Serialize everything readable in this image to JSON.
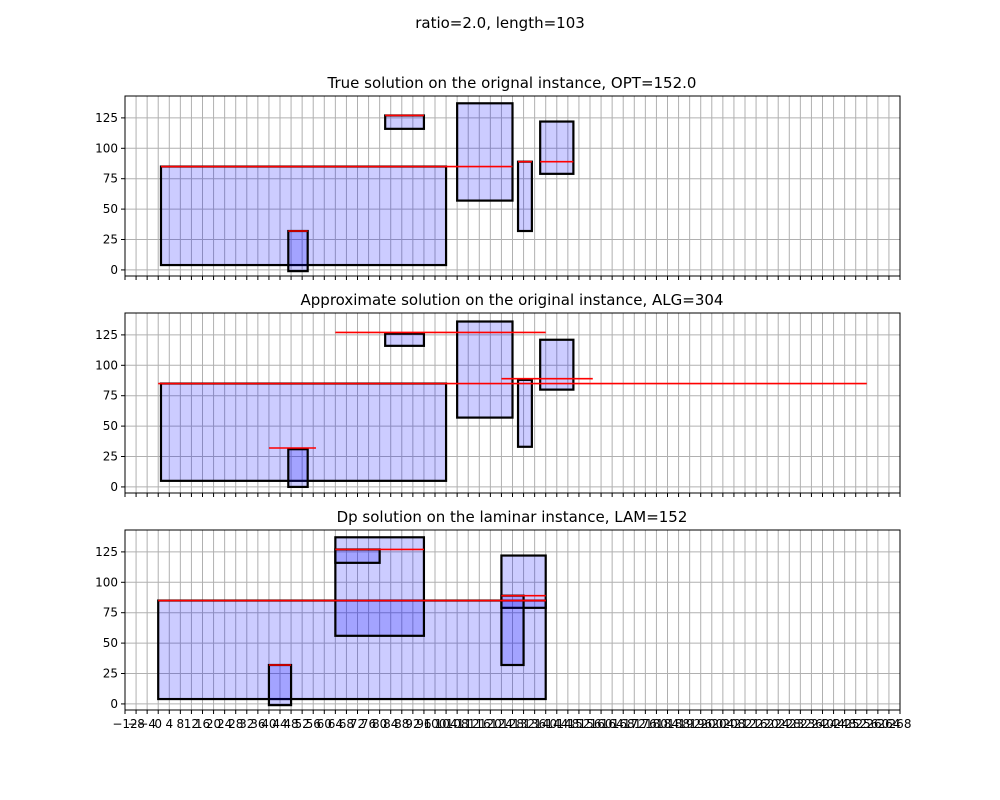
{
  "figure": {
    "suptitle": "ratio=2.0, length=103"
  },
  "colors": {
    "fill": "#ccccff",
    "overlap_fill": "#a6a6ff",
    "edge": "#000000",
    "line": "#ff0000",
    "grid": "#b0b0b0"
  },
  "chart_data": [
    {
      "type": "rectangles",
      "title": "True solution on the orignal instance, OPT=152.0",
      "xlim": [
        -12,
        268
      ],
      "ylim": [
        -5,
        143
      ],
      "xticks": [
        -12,
        -8,
        -4,
        0,
        4,
        8,
        12,
        16,
        20,
        24,
        28,
        32,
        36,
        40,
        44,
        48,
        52,
        56,
        60,
        64,
        68,
        72,
        76,
        80,
        84,
        88,
        92,
        96,
        100,
        104,
        108,
        112,
        116,
        120,
        124,
        128,
        132,
        136,
        140,
        144,
        148,
        152,
        156,
        160,
        164,
        168,
        172,
        176,
        180,
        184,
        188,
        192,
        196,
        200,
        204,
        208,
        212,
        216,
        220,
        224,
        228,
        232,
        236,
        240,
        244,
        248,
        252,
        256,
        260,
        264,
        268
      ],
      "yticks": [
        0,
        25,
        50,
        75,
        100,
        125
      ],
      "grid": true,
      "rects": [
        {
          "x0": 1,
          "x1": 104,
          "y0": 4,
          "y1": 85
        },
        {
          "x0": 47,
          "x1": 54,
          "y0": -1,
          "y1": 32
        },
        {
          "x0": 82,
          "x1": 96,
          "y0": 116,
          "y1": 127
        },
        {
          "x0": 108,
          "x1": 128,
          "y0": 57,
          "y1": 137
        },
        {
          "x0": 130,
          "x1": 135,
          "y0": 32,
          "y1": 89
        },
        {
          "x0": 138,
          "x1": 150,
          "y0": 79,
          "y1": 122
        }
      ],
      "lines": [
        {
          "x0": 1,
          "x1": 128,
          "y": 85
        },
        {
          "x0": 47,
          "x1": 54,
          "y": 32
        },
        {
          "x0": 82,
          "x1": 96,
          "y": 127
        },
        {
          "x0": 130,
          "x1": 135,
          "y": 89
        },
        {
          "x0": 138,
          "x1": 150,
          "y": 89
        }
      ]
    },
    {
      "type": "rectangles",
      "title": "Approximate solution on the original instance, ALG=304",
      "xlim": [
        -12,
        268
      ],
      "ylim": [
        -5,
        143
      ],
      "xticks": [
        -12,
        -8,
        -4,
        0,
        4,
        8,
        12,
        16,
        20,
        24,
        28,
        32,
        36,
        40,
        44,
        48,
        52,
        56,
        60,
        64,
        68,
        72,
        76,
        80,
        84,
        88,
        92,
        96,
        100,
        104,
        108,
        112,
        116,
        120,
        124,
        128,
        132,
        136,
        140,
        144,
        148,
        152,
        156,
        160,
        164,
        168,
        172,
        176,
        180,
        184,
        188,
        192,
        196,
        200,
        204,
        208,
        212,
        216,
        220,
        224,
        228,
        232,
        236,
        240,
        244,
        248,
        252,
        256,
        260,
        264,
        268
      ],
      "yticks": [
        0,
        25,
        50,
        75,
        100,
        125
      ],
      "grid": true,
      "rects": [
        {
          "x0": 1,
          "x1": 104,
          "y0": 5,
          "y1": 85
        },
        {
          "x0": 47,
          "x1": 54,
          "y0": 0,
          "y1": 31
        },
        {
          "x0": 82,
          "x1": 96,
          "y0": 116,
          "y1": 126
        },
        {
          "x0": 108,
          "x1": 128,
          "y0": 57,
          "y1": 136
        },
        {
          "x0": 130,
          "x1": 135,
          "y0": 33,
          "y1": 88
        },
        {
          "x0": 138,
          "x1": 150,
          "y0": 80,
          "y1": 121
        }
      ],
      "lines": [
        {
          "x0": 0,
          "x1": 256,
          "y": 85
        },
        {
          "x0": 40,
          "x1": 57,
          "y": 32
        },
        {
          "x0": 64,
          "x1": 140,
          "y": 127
        },
        {
          "x0": 124,
          "x1": 157,
          "y": 89
        }
      ]
    },
    {
      "type": "rectangles",
      "title": "Dp solution on the laminar instance, LAM=152",
      "xlim": [
        -12,
        268
      ],
      "ylim": [
        -5,
        143
      ],
      "xticks": [
        -12,
        -8,
        -4,
        0,
        4,
        8,
        12,
        16,
        20,
        24,
        28,
        32,
        36,
        40,
        44,
        48,
        52,
        56,
        60,
        64,
        68,
        72,
        76,
        80,
        84,
        88,
        92,
        96,
        100,
        104,
        108,
        112,
        116,
        120,
        124,
        128,
        132,
        136,
        140,
        144,
        148,
        152,
        156,
        160,
        164,
        168,
        172,
        176,
        180,
        184,
        188,
        192,
        196,
        200,
        204,
        208,
        212,
        216,
        220,
        224,
        228,
        232,
        236,
        240,
        244,
        248,
        252,
        256,
        260,
        264,
        268
      ],
      "yticks": [
        0,
        25,
        50,
        75,
        100,
        125
      ],
      "grid": true,
      "rects": [
        {
          "x0": 0,
          "x1": 140,
          "y0": 4,
          "y1": 85
        },
        {
          "x0": 40,
          "x1": 48,
          "y0": -1,
          "y1": 32
        },
        {
          "x0": 64,
          "x1": 96,
          "y0": 56,
          "y1": 137
        },
        {
          "x0": 64,
          "x1": 80,
          "y0": 116,
          "y1": 127
        },
        {
          "x0": 124,
          "x1": 140,
          "y0": 79,
          "y1": 122
        },
        {
          "x0": 124,
          "x1": 132,
          "y0": 32,
          "y1": 89
        }
      ],
      "lines": [
        {
          "x0": 0,
          "x1": 140,
          "y": 85
        },
        {
          "x0": 40,
          "x1": 48,
          "y": 32
        },
        {
          "x0": 64,
          "x1": 96,
          "y": 127
        },
        {
          "x0": 124,
          "x1": 140,
          "y": 89
        },
        {
          "x0": 124,
          "x1": 140,
          "y": 85
        }
      ]
    }
  ]
}
